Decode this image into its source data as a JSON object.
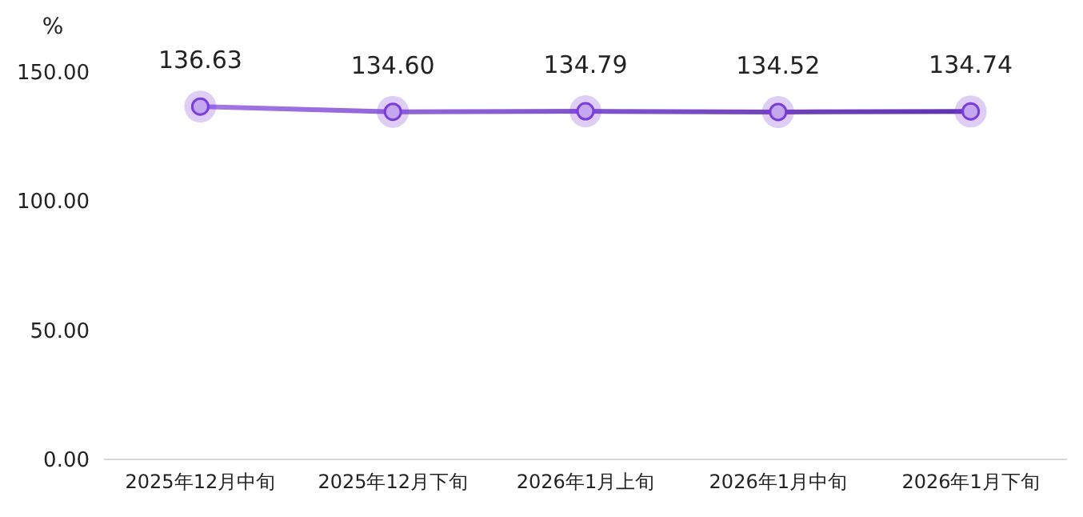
{
  "chart_data": {
    "type": "line",
    "ylabel": "%",
    "categories": [
      "2025年12月中旬",
      "2025年12月下旬",
      "2026年1月上旬",
      "2026年1月中旬",
      "2026年1月下旬"
    ],
    "series": [
      {
        "color": "#7a3ddc",
        "values": [
          136.63,
          134.6,
          134.79,
          134.52,
          134.74
        ],
        "value_labels": [
          "136.63",
          "134.60",
          "134.79",
          "134.52",
          "134.74"
        ]
      }
    ],
    "ylim": [
      0,
      150
    ],
    "yticks": [
      {
        "value": 0,
        "label": "0.00"
      },
      {
        "value": 50,
        "label": "50.00"
      },
      {
        "value": 100,
        "label": "100.00"
      },
      {
        "value": 150,
        "label": "150.00"
      }
    ],
    "marker": "circle",
    "line_style": "solid",
    "grid": false
  }
}
